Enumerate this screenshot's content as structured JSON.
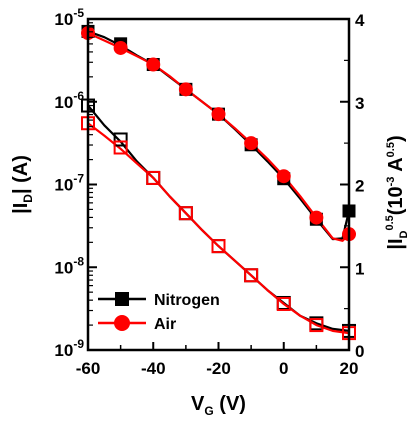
{
  "chart_data": {
    "type": "line",
    "x_axis": {
      "label": "V",
      "label_sub": "G",
      "label_unit": " (V)",
      "range": [
        -60,
        20
      ],
      "ticks": [
        -60,
        -40,
        -20,
        0,
        20
      ],
      "tick_labels": [
        "-60",
        "-40",
        "-20",
        "0",
        "20"
      ]
    },
    "y_left_axis": {
      "label": "|I",
      "label_sub": "D",
      "label_unit": "| (A)",
      "scale": "log",
      "range": [
        1e-09,
        1e-05
      ],
      "ticks": [
        1e-09,
        1e-08,
        1e-07,
        1e-06,
        1e-05
      ],
      "tick_base": "10",
      "tick_exponents": [
        "-9",
        "-8",
        "-7",
        "-6",
        "-5"
      ]
    },
    "y_right_axis": {
      "label": "|I",
      "label_sub": "D",
      "label_sup": "0.5",
      "label_unit": "(10",
      "label_unit_sup": "-3",
      "label_unit_end": " A",
      "label_unit_end_sup": "0.5",
      "label_close": ")",
      "scale": "linear",
      "range": [
        0,
        4
      ],
      "ticks": [
        0,
        1,
        2,
        3,
        4
      ],
      "tick_labels": [
        "0",
        "1",
        "2",
        "3",
        "4"
      ]
    },
    "legend": {
      "position": "bottom-left",
      "entries": [
        {
          "label": "Nitrogen",
          "color": "#000000",
          "marker": "square"
        },
        {
          "label": "Air",
          "color": "#ff0000",
          "marker": "circle"
        }
      ]
    },
    "series": [
      {
        "name": "Nitrogen",
        "axis": "left",
        "marker": "open-square",
        "color": "#000000",
        "x": [
          -60,
          -50,
          -40,
          -30,
          -20,
          -10,
          0,
          10,
          20
        ],
        "y": [
          9e-07,
          3.5e-07,
          1.2e-07,
          4.5e-08,
          1.8e-08,
          8e-09,
          3.7e-09,
          2.1e-09,
          1.7e-09
        ],
        "curve_x": [
          -60,
          -55,
          -50,
          -45,
          -40,
          -35,
          -30,
          -25,
          -20,
          -15,
          -10,
          -5,
          0,
          5,
          10,
          15,
          20
        ],
        "curve_y": [
          9e-07,
          5.2e-07,
          3.3e-07,
          1.9e-07,
          1.2e-07,
          7.2e-08,
          4.5e-08,
          2.8e-08,
          1.8e-08,
          1.2e-08,
          8e-09,
          5.3e-09,
          3.7e-09,
          2.6e-09,
          2.1e-09,
          1.8e-09,
          1.7e-09
        ]
      },
      {
        "name": "Air",
        "axis": "left",
        "marker": "open-square",
        "color": "#ff0000",
        "x": [
          -60,
          -50,
          -40,
          -30,
          -20,
          -10,
          0,
          10,
          20
        ],
        "y": [
          5.5e-07,
          2.8e-07,
          1.2e-07,
          4.5e-08,
          1.8e-08,
          8e-09,
          3.6e-09,
          2e-09,
          1.6e-09
        ],
        "curve_x": [
          -60,
          -55,
          -50,
          -45,
          -40,
          -35,
          -30,
          -25,
          -20,
          -15,
          -10,
          -5,
          0,
          5,
          10,
          15,
          20
        ],
        "curve_y": [
          5.5e-07,
          3.9e-07,
          2.7e-07,
          1.8e-07,
          1.2e-07,
          7.2e-08,
          4.5e-08,
          2.8e-08,
          1.8e-08,
          1.2e-08,
          8e-09,
          5.3e-09,
          3.6e-09,
          2.6e-09,
          2e-09,
          1.7e-09,
          1.6e-09
        ]
      },
      {
        "name": "Nitrogen",
        "axis": "right",
        "marker": "filled-square",
        "color": "#000000",
        "x": [
          -60,
          -50,
          -40,
          -30,
          -20,
          -10,
          0,
          10,
          20
        ],
        "y": [
          3.85,
          3.7,
          3.45,
          3.15,
          2.85,
          2.48,
          2.07,
          1.58,
          1.68
        ],
        "curve_x": [
          -60,
          -55,
          -50,
          -45,
          -40,
          -35,
          -30,
          -25,
          -20,
          -15,
          -10,
          -5,
          0,
          5,
          10,
          15,
          18,
          20
        ],
        "curve_y": [
          3.85,
          3.78,
          3.68,
          3.56,
          3.45,
          3.3,
          3.15,
          3.0,
          2.85,
          2.67,
          2.48,
          2.28,
          2.07,
          1.83,
          1.58,
          1.34,
          1.35,
          1.68
        ]
      },
      {
        "name": "Air",
        "axis": "right",
        "marker": "filled-circle",
        "color": "#ff0000",
        "x": [
          -60,
          -50,
          -40,
          -30,
          -20,
          -10,
          0,
          10,
          20
        ],
        "y": [
          3.83,
          3.65,
          3.45,
          3.15,
          2.85,
          2.5,
          2.1,
          1.6,
          1.4
        ],
        "curve_x": [
          -60,
          -55,
          -50,
          -45,
          -40,
          -35,
          -30,
          -25,
          -20,
          -15,
          -10,
          -5,
          0,
          5,
          10,
          15,
          18,
          20
        ],
        "curve_y": [
          3.83,
          3.74,
          3.65,
          3.55,
          3.45,
          3.31,
          3.15,
          3.0,
          2.85,
          2.68,
          2.5,
          2.31,
          2.1,
          1.86,
          1.6,
          1.35,
          1.32,
          1.4
        ]
      }
    ]
  }
}
